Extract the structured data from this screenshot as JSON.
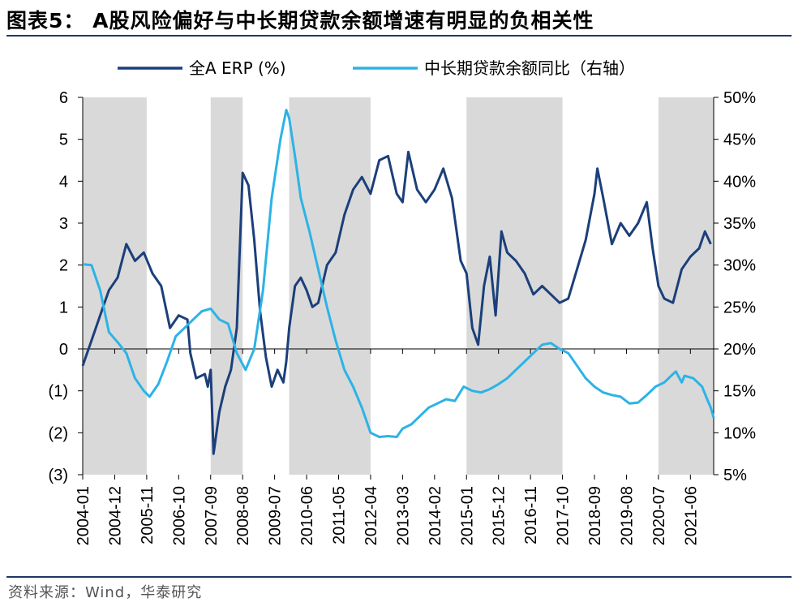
{
  "title": "图表5：  A股风险偏好与中长期贷款余额增速有明显的负相关性",
  "source": "资料来源：Wind，华泰研究",
  "colors": {
    "erp": "#1b3f7a",
    "loan": "#2cb3e6",
    "shade": "#d9d9d9",
    "rule": "#1f3864"
  },
  "chart_data": {
    "type": "line",
    "title": "",
    "legend_position": "top",
    "grid": false,
    "x_labels": [
      "2004-01",
      "2004-12",
      "2005-11",
      "2006-10",
      "2007-09",
      "2008-08",
      "2009-07",
      "2010-06",
      "2011-05",
      "2012-04",
      "2013-03",
      "2014-02",
      "2015-01",
      "2015-12",
      "2016-11",
      "2017-10",
      "2018-09",
      "2019-08",
      "2020-07",
      "2021-06"
    ],
    "x_range": [
      "2004-01",
      "2022-02"
    ],
    "y_left_ticks": [
      "6",
      "5",
      "4",
      "3",
      "2",
      "1",
      "0",
      "(1)",
      "(2)",
      "(3)"
    ],
    "y_left_range": [
      -3,
      6
    ],
    "y_right_ticks": [
      "50%",
      "45%",
      "40%",
      "35%",
      "30%",
      "25%",
      "20%",
      "15%",
      "10%",
      "5%"
    ],
    "y_right_range": [
      5,
      50
    ],
    "shaded_periods": [
      [
        "2004-01",
        "2005-11"
      ],
      [
        "2007-09",
        "2008-08"
      ],
      [
        "2009-12",
        "2012-04"
      ],
      [
        "2015-01",
        "2017-10"
      ],
      [
        "2020-07",
        "2022-02"
      ]
    ],
    "series": [
      {
        "name": "全A ERP (%)",
        "axis": "left",
        "points": [
          [
            "2004-01",
            -0.4
          ],
          [
            "2004-04",
            0.2
          ],
          [
            "2004-07",
            0.8
          ],
          [
            "2004-10",
            1.4
          ],
          [
            "2005-01",
            1.7
          ],
          [
            "2005-04",
            2.5
          ],
          [
            "2005-07",
            2.1
          ],
          [
            "2005-10",
            2.3
          ],
          [
            "2006-01",
            1.8
          ],
          [
            "2006-04",
            1.5
          ],
          [
            "2006-07",
            0.5
          ],
          [
            "2006-10",
            0.8
          ],
          [
            "2007-01",
            0.7
          ],
          [
            "2007-02",
            -0.1
          ],
          [
            "2007-04",
            -0.7
          ],
          [
            "2007-07",
            -0.6
          ],
          [
            "2007-08",
            -0.9
          ],
          [
            "2007-09",
            -0.5
          ],
          [
            "2007-10",
            -2.5
          ],
          [
            "2007-12",
            -1.5
          ],
          [
            "2008-02",
            -0.9
          ],
          [
            "2008-04",
            -0.5
          ],
          [
            "2008-06",
            0.5
          ],
          [
            "2008-08",
            4.2
          ],
          [
            "2008-10",
            3.9
          ],
          [
            "2008-12",
            2.6
          ],
          [
            "2009-02",
            0.9
          ],
          [
            "2009-04",
            -0.2
          ],
          [
            "2009-06",
            -0.9
          ],
          [
            "2009-08",
            -0.5
          ],
          [
            "2009-10",
            -0.8
          ],
          [
            "2009-11",
            -0.3
          ],
          [
            "2009-12",
            0.5
          ],
          [
            "2010-02",
            1.5
          ],
          [
            "2010-04",
            1.7
          ],
          [
            "2010-06",
            1.4
          ],
          [
            "2010-08",
            1.0
          ],
          [
            "2010-10",
            1.1
          ],
          [
            "2011-01",
            2.0
          ],
          [
            "2011-04",
            2.3
          ],
          [
            "2011-07",
            3.2
          ],
          [
            "2011-10",
            3.8
          ],
          [
            "2012-01",
            4.1
          ],
          [
            "2012-04",
            3.7
          ],
          [
            "2012-07",
            4.5
          ],
          [
            "2012-10",
            4.6
          ],
          [
            "2013-01",
            3.7
          ],
          [
            "2013-03",
            3.5
          ],
          [
            "2013-05",
            4.7
          ],
          [
            "2013-08",
            3.8
          ],
          [
            "2013-11",
            3.5
          ],
          [
            "2014-02",
            3.8
          ],
          [
            "2014-05",
            4.3
          ],
          [
            "2014-08",
            3.6
          ],
          [
            "2014-11",
            2.1
          ],
          [
            "2015-01",
            1.8
          ],
          [
            "2015-03",
            0.5
          ],
          [
            "2015-05",
            0.1
          ],
          [
            "2015-07",
            1.5
          ],
          [
            "2015-09",
            2.2
          ],
          [
            "2015-11",
            0.8
          ],
          [
            "2016-01",
            2.8
          ],
          [
            "2016-03",
            2.3
          ],
          [
            "2016-06",
            2.1
          ],
          [
            "2016-09",
            1.8
          ],
          [
            "2016-12",
            1.3
          ],
          [
            "2017-03",
            1.5
          ],
          [
            "2017-06",
            1.3
          ],
          [
            "2017-09",
            1.1
          ],
          [
            "2017-12",
            1.2
          ],
          [
            "2018-03",
            1.9
          ],
          [
            "2018-06",
            2.6
          ],
          [
            "2018-09",
            3.7
          ],
          [
            "2018-10",
            4.3
          ],
          [
            "2018-12",
            3.6
          ],
          [
            "2019-03",
            2.5
          ],
          [
            "2019-06",
            3.0
          ],
          [
            "2019-09",
            2.7
          ],
          [
            "2019-12",
            3.0
          ],
          [
            "2020-03",
            3.5
          ],
          [
            "2020-05",
            2.4
          ],
          [
            "2020-07",
            1.5
          ],
          [
            "2020-09",
            1.2
          ],
          [
            "2020-12",
            1.1
          ],
          [
            "2021-03",
            1.9
          ],
          [
            "2021-06",
            2.2
          ],
          [
            "2021-09",
            2.4
          ],
          [
            "2021-11",
            2.8
          ],
          [
            "2022-01",
            2.5
          ]
        ]
      },
      {
        "name": "中长期贷款余额同比（右轴）",
        "axis": "right",
        "points": [
          [
            "2004-01",
            30.1
          ],
          [
            "2004-04",
            30.0
          ],
          [
            "2004-07",
            27.0
          ],
          [
            "2004-10",
            22.0
          ],
          [
            "2005-01",
            20.8
          ],
          [
            "2005-04",
            19.5
          ],
          [
            "2005-07",
            16.5
          ],
          [
            "2005-10",
            15.0
          ],
          [
            "2005-12",
            14.3
          ],
          [
            "2006-03",
            15.8
          ],
          [
            "2006-06",
            18.5
          ],
          [
            "2006-09",
            21.5
          ],
          [
            "2006-12",
            22.5
          ],
          [
            "2007-03",
            23.5
          ],
          [
            "2007-06",
            24.5
          ],
          [
            "2007-09",
            24.8
          ],
          [
            "2007-12",
            23.5
          ],
          [
            "2008-03",
            23.0
          ],
          [
            "2008-06",
            19.5
          ],
          [
            "2008-09",
            17.5
          ],
          [
            "2008-12",
            20.0
          ],
          [
            "2009-03",
            27.0
          ],
          [
            "2009-06",
            38.0
          ],
          [
            "2009-09",
            45.0
          ],
          [
            "2009-11",
            48.5
          ],
          [
            "2009-12",
            47.5
          ],
          [
            "2010-02",
            43.0
          ],
          [
            "2010-04",
            38.0
          ],
          [
            "2010-07",
            34.0
          ],
          [
            "2010-10",
            29.5
          ],
          [
            "2011-01",
            25.0
          ],
          [
            "2011-04",
            21.0
          ],
          [
            "2011-07",
            17.5
          ],
          [
            "2011-10",
            15.5
          ],
          [
            "2012-01",
            13.0
          ],
          [
            "2012-04",
            10.0
          ],
          [
            "2012-07",
            9.5
          ],
          [
            "2012-10",
            9.6
          ],
          [
            "2013-01",
            9.5
          ],
          [
            "2013-03",
            10.5
          ],
          [
            "2013-06",
            11.0
          ],
          [
            "2013-09",
            12.0
          ],
          [
            "2013-12",
            13.0
          ],
          [
            "2014-03",
            13.5
          ],
          [
            "2014-06",
            14.0
          ],
          [
            "2014-09",
            13.8
          ],
          [
            "2014-12",
            15.5
          ],
          [
            "2015-03",
            15.0
          ],
          [
            "2015-06",
            14.8
          ],
          [
            "2015-09",
            15.2
          ],
          [
            "2015-12",
            15.8
          ],
          [
            "2016-03",
            16.5
          ],
          [
            "2016-06",
            17.5
          ],
          [
            "2016-09",
            18.5
          ],
          [
            "2016-12",
            19.5
          ],
          [
            "2017-03",
            20.5
          ],
          [
            "2017-06",
            20.7
          ],
          [
            "2017-09",
            20.0
          ],
          [
            "2017-12",
            19.5
          ],
          [
            "2018-03",
            18.0
          ],
          [
            "2018-06",
            16.5
          ],
          [
            "2018-09",
            15.5
          ],
          [
            "2018-12",
            14.8
          ],
          [
            "2019-03",
            14.5
          ],
          [
            "2019-06",
            14.3
          ],
          [
            "2019-09",
            13.5
          ],
          [
            "2019-12",
            13.6
          ],
          [
            "2020-03",
            14.5
          ],
          [
            "2020-06",
            15.5
          ],
          [
            "2020-09",
            16.0
          ],
          [
            "2020-12",
            17.0
          ],
          [
            "2021-01",
            17.3
          ],
          [
            "2021-03",
            16.0
          ],
          [
            "2021-04",
            16.8
          ],
          [
            "2021-07",
            16.5
          ],
          [
            "2021-10",
            15.5
          ],
          [
            "2021-12",
            13.8
          ],
          [
            "2022-01",
            13.0
          ],
          [
            "2022-02",
            11.8
          ]
        ]
      }
    ]
  }
}
